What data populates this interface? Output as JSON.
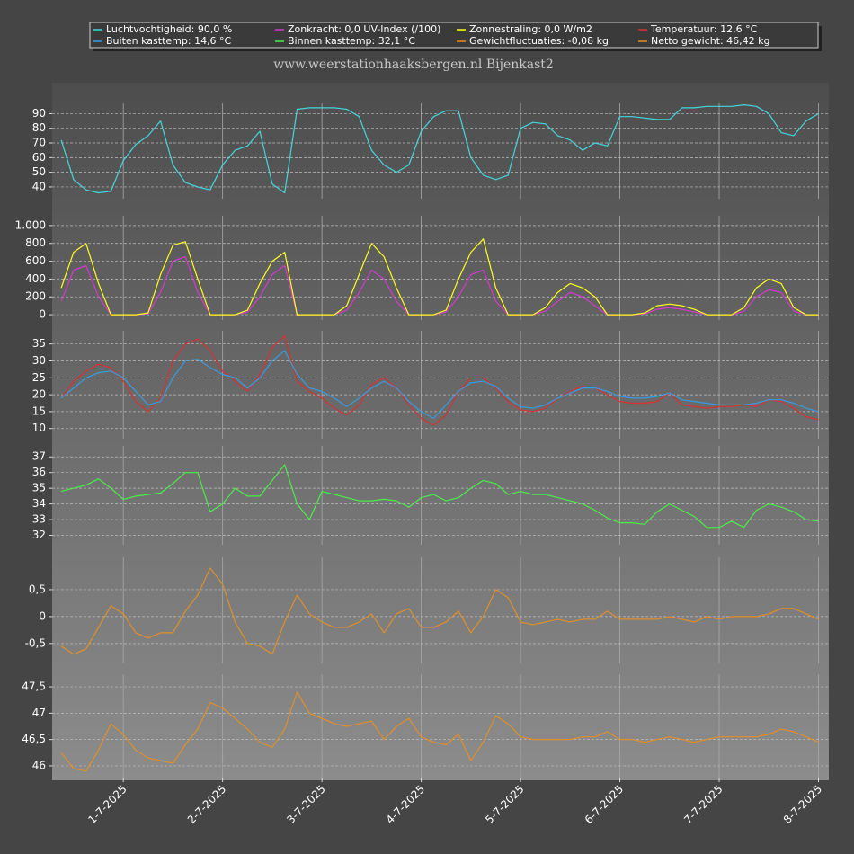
{
  "title": "www.weerstationhaaksbergen.nl Bijenkast2",
  "chart_data": [
    {
      "type": "line",
      "x": [
        9,
        12,
        15,
        18,
        21,
        24,
        27,
        30,
        33,
        36,
        39,
        42,
        45,
        48,
        51,
        54,
        57,
        60,
        63,
        66,
        69,
        72,
        75,
        78,
        81,
        84,
        87,
        90,
        93,
        96,
        99,
        102,
        105,
        108,
        111,
        114,
        117,
        120,
        123,
        126,
        129,
        132,
        135,
        138,
        141,
        144,
        147,
        150,
        153,
        156,
        159,
        162,
        165,
        168,
        171,
        174,
        177,
        180,
        183,
        186,
        189,
        192
      ],
      "xlim": [
        6.8,
        194.5
      ],
      "ylim": [
        32,
        97
      ],
      "yticks": [
        40,
        50,
        60,
        70,
        80,
        90
      ],
      "grid": true,
      "series": [
        {
          "name": "Luchtvochtigheid: 90,0 %",
          "color": "#45d6dc",
          "values": [
            72,
            45,
            38,
            36,
            37,
            58,
            69,
            75,
            85,
            55,
            43,
            40,
            38,
            55,
            65,
            68,
            78,
            42,
            36,
            93,
            94,
            94,
            94,
            93,
            88,
            65,
            55,
            50,
            55,
            78,
            88,
            92,
            92,
            60,
            48,
            45,
            48,
            80,
            84,
            83,
            75,
            72,
            65,
            70,
            68,
            88,
            88,
            87,
            86,
            86,
            94,
            94,
            95,
            95,
            95,
            96,
            95,
            90,
            77,
            75,
            85,
            90
          ]
        }
      ]
    },
    {
      "type": "line",
      "x": [
        9,
        12,
        15,
        18,
        21,
        24,
        27,
        30,
        33,
        36,
        39,
        42,
        45,
        48,
        51,
        54,
        57,
        60,
        63,
        66,
        69,
        72,
        75,
        78,
        81,
        84,
        87,
        90,
        93,
        96,
        99,
        102,
        105,
        108,
        111,
        114,
        117,
        120,
        123,
        126,
        129,
        132,
        135,
        138,
        141,
        144,
        147,
        150,
        153,
        156,
        159,
        162,
        165,
        168,
        171,
        174,
        177,
        180,
        183,
        186,
        189,
        192
      ],
      "xlim": [
        6.8,
        194.5
      ],
      "ylim": [
        -60,
        1110
      ],
      "yticks": [
        0,
        200,
        400,
        600,
        800,
        {
          "value": 1000,
          "label": "1.000"
        }
      ],
      "grid": true,
      "series": [
        {
          "name": "Zonkracht: 0,0 UV-Index (/100)",
          "color": "#d23ad2",
          "values": [
            150,
            500,
            550,
            200,
            0,
            0,
            0,
            10,
            250,
            600,
            650,
            250,
            0,
            0,
            0,
            30,
            200,
            450,
            550,
            0,
            0,
            0,
            0,
            50,
            250,
            500,
            400,
            150,
            0,
            0,
            0,
            30,
            200,
            450,
            500,
            150,
            0,
            0,
            0,
            40,
            150,
            250,
            200,
            100,
            0,
            0,
            0,
            10,
            60,
            80,
            60,
            30,
            0,
            0,
            0,
            40,
            200,
            280,
            250,
            40,
            0,
            0
          ]
        },
        {
          "name": "Zonnestraling: 0,0 W/m2",
          "color": "#ffff1a",
          "values": [
            300,
            700,
            800,
            350,
            0,
            0,
            0,
            20,
            450,
            780,
            820,
            400,
            0,
            0,
            0,
            50,
            350,
            600,
            700,
            0,
            0,
            0,
            0,
            100,
            450,
            800,
            650,
            300,
            0,
            0,
            0,
            50,
            400,
            700,
            850,
            300,
            0,
            0,
            0,
            80,
            250,
            350,
            300,
            200,
            0,
            0,
            0,
            20,
            100,
            120,
            100,
            60,
            0,
            0,
            0,
            80,
            300,
            400,
            350,
            80,
            0,
            0
          ]
        }
      ]
    },
    {
      "type": "line",
      "x": [
        9,
        12,
        15,
        18,
        21,
        24,
        27,
        30,
        33,
        36,
        39,
        42,
        45,
        48,
        51,
        54,
        57,
        60,
        63,
        66,
        69,
        72,
        75,
        78,
        81,
        84,
        87,
        90,
        93,
        96,
        99,
        102,
        105,
        108,
        111,
        114,
        117,
        120,
        123,
        126,
        129,
        132,
        135,
        138,
        141,
        144,
        147,
        150,
        153,
        156,
        159,
        162,
        165,
        168,
        171,
        174,
        177,
        180,
        183,
        186,
        189,
        192
      ],
      "xlim": [
        6.8,
        194.5
      ],
      "ylim": [
        7,
        38.9
      ],
      "yticks": [
        10,
        15,
        20,
        25,
        30,
        35
      ],
      "grid": true,
      "series": [
        {
          "name": "Temperatuur: 12,6 °C",
          "color": "#d63232",
          "values": [
            19,
            24,
            27,
            29,
            28,
            24,
            18,
            15,
            19,
            30,
            35,
            36.5,
            33,
            27,
            24,
            21,
            26,
            34,
            37.5,
            24,
            21,
            19,
            16,
            14,
            17,
            23,
            25,
            22,
            17,
            13,
            11,
            14,
            21,
            25,
            25,
            22,
            18,
            15.5,
            15,
            16,
            19,
            21,
            22.5,
            22,
            20,
            18,
            17.5,
            17.5,
            18,
            20.5,
            17,
            16.5,
            16,
            16.5,
            16.5,
            17,
            16.5,
            18.5,
            18,
            16,
            13.5,
            12.6
          ]
        },
        {
          "name": "Buiten kasttemp: 14,6 °C",
          "color": "#3a9be0",
          "values": [
            19,
            22,
            25,
            26.5,
            27,
            25,
            21,
            17,
            18,
            25,
            30,
            30.5,
            28,
            26,
            25,
            22,
            25,
            30,
            33,
            26,
            22,
            21,
            19,
            16.5,
            19,
            22,
            24,
            22,
            18,
            15,
            13,
            17,
            21,
            23.5,
            24,
            22.5,
            19,
            16.5,
            16,
            17,
            19,
            20.5,
            22,
            22,
            21,
            19.5,
            19,
            19,
            19.5,
            20.5,
            18.5,
            18,
            17.5,
            17,
            17,
            17,
            17.5,
            18.5,
            18.5,
            17.5,
            16,
            15
          ]
        }
      ]
    },
    {
      "type": "line",
      "x": [
        9,
        12,
        15,
        18,
        21,
        24,
        27,
        30,
        33,
        36,
        39,
        42,
        45,
        48,
        51,
        54,
        57,
        60,
        63,
        66,
        69,
        72,
        75,
        78,
        81,
        84,
        87,
        90,
        93,
        96,
        99,
        102,
        105,
        108,
        111,
        114,
        117,
        120,
        123,
        126,
        129,
        132,
        135,
        138,
        141,
        144,
        147,
        150,
        153,
        156,
        159,
        162,
        165,
        168,
        171,
        174,
        177,
        180,
        183,
        186,
        189,
        192
      ],
      "xlim": [
        6.8,
        194.5
      ],
      "ylim": [
        31.4,
        37.7
      ],
      "yticks": [
        32,
        33,
        34,
        35,
        36,
        37
      ],
      "grid": true,
      "series": [
        {
          "name": "Binnen kasttemp: 32,1 °C",
          "color": "#4aee4a",
          "values": [
            34.8,
            35,
            35.2,
            35.6,
            35,
            34.3,
            34.5,
            34.6,
            34.7,
            35.3,
            36,
            36,
            33.5,
            34,
            35,
            34.5,
            34.5,
            35.5,
            36.5,
            34,
            33,
            34.8,
            34.6,
            34.4,
            34.2,
            34.2,
            34.3,
            34.2,
            33.8,
            34.4,
            34.6,
            34.2,
            34.4,
            35,
            35.5,
            35.3,
            34.6,
            34.8,
            34.6,
            34.6,
            34.4,
            34.2,
            34,
            33.6,
            33.1,
            32.8,
            32.8,
            32.7,
            33.5,
            34,
            33.6,
            33.2,
            32.5,
            32.5,
            32.9,
            32.5,
            33.6,
            34,
            33.8,
            33.5,
            33,
            32.9
          ]
        }
      ]
    },
    {
      "type": "line",
      "x": [
        9,
        12,
        15,
        18,
        21,
        24,
        27,
        30,
        33,
        36,
        39,
        42,
        45,
        48,
        51,
        54,
        57,
        60,
        63,
        66,
        69,
        72,
        75,
        78,
        81,
        84,
        87,
        90,
        93,
        96,
        99,
        102,
        105,
        108,
        111,
        114,
        117,
        120,
        123,
        126,
        129,
        132,
        135,
        138,
        141,
        144,
        147,
        150,
        153,
        156,
        159,
        162,
        165,
        168,
        171,
        174,
        177,
        180,
        183,
        186,
        189,
        192
      ],
      "xlim": [
        6.8,
        194.5
      ],
      "ylim": [
        -0.87,
        1.1
      ],
      "yticks": [
        {
          "value": -0.5,
          "label": "-0,5"
        },
        0,
        {
          "value": 0.5,
          "label": "0,5"
        }
      ],
      "grid": true,
      "series": [
        {
          "name": "Gewichtfluctuaties: -0,08 kg",
          "color": "#e0902a",
          "values": [
            -0.55,
            -0.7,
            -0.6,
            -0.2,
            0.2,
            0.05,
            -0.3,
            -0.4,
            -0.3,
            -0.3,
            0.1,
            0.4,
            0.9,
            0.6,
            -0.1,
            -0.5,
            -0.55,
            -0.7,
            -0.1,
            0.4,
            0.05,
            -0.1,
            -0.2,
            -0.2,
            -0.1,
            0.05,
            -0.3,
            0.05,
            0.15,
            -0.2,
            -0.2,
            -0.1,
            0.1,
            -0.3,
            0,
            0.5,
            0.35,
            -0.1,
            -0.15,
            -0.1,
            -0.05,
            -0.1,
            -0.05,
            -0.05,
            0.1,
            -0.05,
            -0.05,
            -0.05,
            -0.05,
            0,
            -0.05,
            -0.1,
            0,
            -0.05,
            0,
            0,
            0,
            0.05,
            0.15,
            0.15,
            0.05,
            -0.05
          ]
        }
      ]
    },
    {
      "type": "line",
      "x": [
        9,
        12,
        15,
        18,
        21,
        24,
        27,
        30,
        33,
        36,
        39,
        42,
        45,
        48,
        51,
        54,
        57,
        60,
        63,
        66,
        69,
        72,
        75,
        78,
        81,
        84,
        87,
        90,
        93,
        96,
        99,
        102,
        105,
        108,
        111,
        114,
        117,
        120,
        123,
        126,
        129,
        132,
        135,
        138,
        141,
        144,
        147,
        150,
        153,
        156,
        159,
        162,
        165,
        168,
        171,
        174,
        177,
        180,
        183,
        186,
        189,
        192
      ],
      "xlim": [
        6.8,
        194.5
      ],
      "ylim": [
        45.76,
        47.74
      ],
      "yticks": [
        46,
        {
          "value": 46.5,
          "label": "46,5"
        },
        47,
        {
          "value": 47.5,
          "label": "47,5"
        }
      ],
      "grid": true,
      "xticks": [
        {
          "value": 24,
          "label": "1-7-2025"
        },
        {
          "value": 48,
          "label": "2-7-2025"
        },
        {
          "value": 72,
          "label": "3-7-2025"
        },
        {
          "value": 96,
          "label": "4-7-2025"
        },
        {
          "value": 120,
          "label": "5-7-2025"
        },
        {
          "value": 144,
          "label": "6-7-2025"
        },
        {
          "value": 168,
          "label": "7-7-2025"
        },
        {
          "value": 192,
          "label": "8-7-2025"
        }
      ],
      "series": [
        {
          "name": "Netto gewicht: 46,42 kg",
          "color": "#e0902a",
          "values": [
            46.25,
            45.95,
            45.9,
            46.3,
            46.8,
            46.6,
            46.3,
            46.15,
            46.1,
            46.05,
            46.4,
            46.7,
            47.2,
            47.1,
            46.9,
            46.7,
            46.45,
            46.35,
            46.7,
            47.4,
            47,
            46.9,
            46.8,
            46.75,
            46.8,
            46.85,
            46.5,
            46.75,
            46.9,
            46.55,
            46.45,
            46.4,
            46.6,
            46.1,
            46.45,
            46.95,
            46.8,
            46.55,
            46.5,
            46.5,
            46.5,
            46.5,
            46.55,
            46.55,
            46.65,
            46.5,
            46.5,
            46.45,
            46.5,
            46.55,
            46.5,
            46.45,
            46.5,
            46.55,
            46.55,
            46.55,
            46.55,
            46.6,
            46.7,
            46.65,
            46.55,
            46.45
          ]
        }
      ]
    }
  ]
}
